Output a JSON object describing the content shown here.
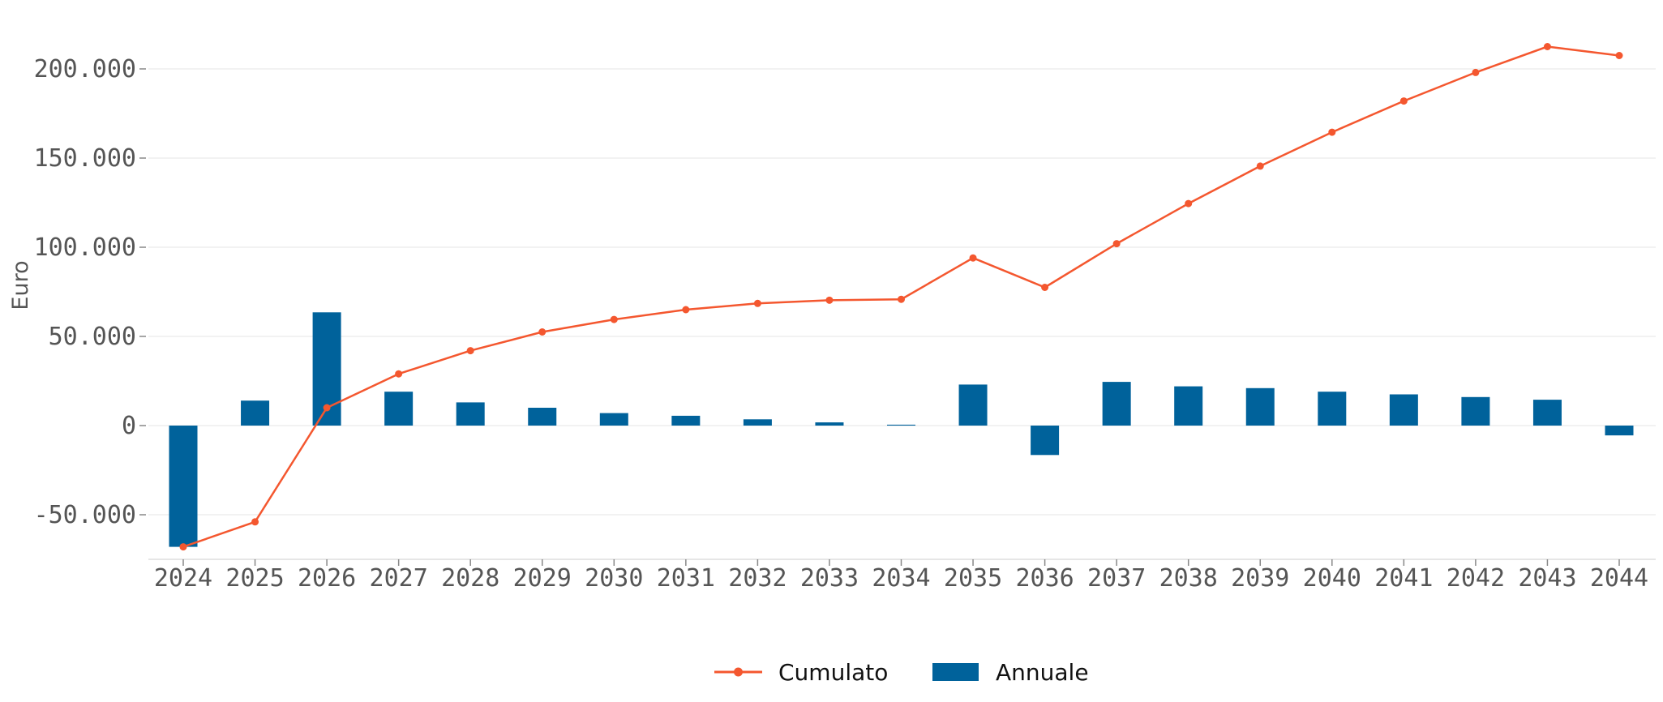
{
  "chart_data": {
    "type": "bar+line",
    "title": "",
    "xlabel": "",
    "ylabel": "Euro",
    "categories": [
      "2024",
      "2025",
      "2026",
      "2027",
      "2028",
      "2029",
      "2030",
      "2031",
      "2032",
      "2033",
      "2034",
      "2035",
      "2036",
      "2037",
      "2038",
      "2039",
      "2040",
      "2041",
      "2042",
      "2043",
      "2044"
    ],
    "series": [
      {
        "name": "Annuale",
        "type": "bar",
        "color": "#00629b",
        "values": [
          -68000,
          14000,
          63500,
          19000,
          13000,
          10000,
          7000,
          5500,
          3500,
          1800,
          500,
          23000,
          -16500,
          24500,
          22000,
          21000,
          19000,
          17500,
          16000,
          14500,
          -5500
        ]
      },
      {
        "name": "Cumulato",
        "type": "line",
        "color": "#f4572f",
        "values": [
          -68000,
          -54000,
          10000,
          29000,
          42000,
          52500,
          59500,
          65000,
          68500,
          70300,
          70800,
          94000,
          77500,
          102000,
          124500,
          145500,
          164500,
          182000,
          198000,
          212500,
          207500
        ]
      }
    ],
    "ylim": [
      -75000,
      225000
    ],
    "yticks": [
      -50000,
      0,
      50000,
      100000,
      150000,
      200000
    ],
    "ytick_labels": [
      "-50.000",
      "0",
      "50.000",
      "100.000",
      "150.000",
      "200.000"
    ],
    "grid": "horizontal",
    "legend": {
      "placement": "bottom-center",
      "entries": [
        "Cumulato",
        "Annuale"
      ]
    }
  }
}
